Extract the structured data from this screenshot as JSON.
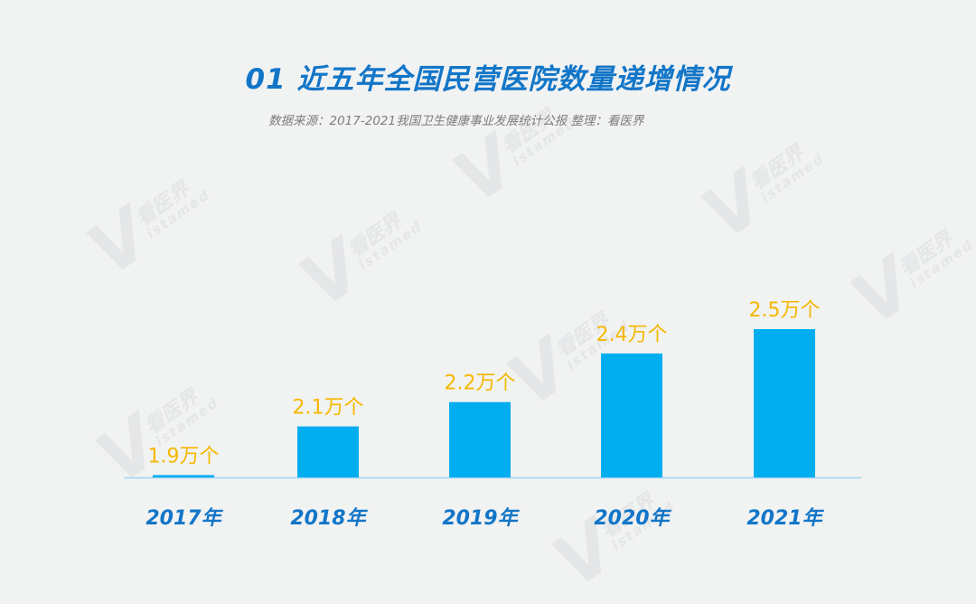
{
  "header": {
    "title": "01 近五年全国民营医院数量递增情况",
    "subtitle": "数据来源：2017-2021我国卫生健康事业发展统计公报   整理：看医界"
  },
  "watermark": {
    "letter": "V",
    "cn": "看医界",
    "en": "istamed"
  },
  "colors": {
    "bar": "#00aeef",
    "value_label": "#f5b800",
    "axis_label": "#1276c8",
    "baseline": "#9fd4ef"
  },
  "chart_data": {
    "type": "bar",
    "categories": [
      "2017年",
      "2018年",
      "2019年",
      "2020年",
      "2021年"
    ],
    "values": [
      1.9,
      2.1,
      2.2,
      2.4,
      2.5
    ],
    "value_labels": [
      "1.9万个",
      "2.1万个",
      "2.2万个",
      "2.4万个",
      "2.5万个"
    ],
    "unit": "万个",
    "ylim": [
      0,
      2.5
    ],
    "grid": false,
    "legend": "none"
  }
}
